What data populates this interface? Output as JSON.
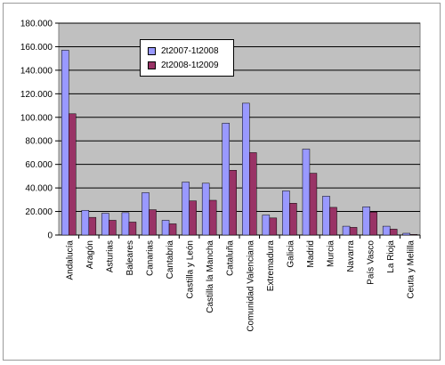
{
  "chart_data": {
    "type": "bar",
    "categories": [
      "Andalucía",
      "Aragón",
      "Asturias",
      "Baleares",
      "Canarias",
      "Cantabria",
      "Castilla y León",
      "Castilla la Mancha",
      "Cataluña",
      "Comunidad Valenciana",
      "Extremadura",
      "Galicia",
      "Madrid",
      "Murcia",
      "Navarra",
      "País Vasco",
      "La Rioja",
      "Ceuta y Melilla"
    ],
    "series": [
      {
        "name": "2t2007-1t2008",
        "color": "#9999ff",
        "values": [
          157000,
          21000,
          18500,
          19000,
          36000,
          12500,
          45000,
          44000,
          95000,
          112000,
          17000,
          37500,
          73000,
          33000,
          7500,
          24000,
          7500,
          1500
        ]
      },
      {
        "name": "2t2008-1t2009",
        "color": "#993366",
        "values": [
          103000,
          15000,
          12500,
          11000,
          21500,
          9500,
          29000,
          29500,
          55000,
          70000,
          14500,
          27000,
          52500,
          23500,
          6500,
          19500,
          5000,
          500
        ]
      }
    ],
    "yticks": [
      "0",
      "20.000",
      "40.000",
      "60.000",
      "80.000",
      "100.000",
      "120.000",
      "140.000",
      "160.000",
      "180.000"
    ],
    "ylim": [
      0,
      180000
    ],
    "plot_background": "#c0c0c0",
    "grid": true,
    "legend_position": "top-left inside plot"
  }
}
